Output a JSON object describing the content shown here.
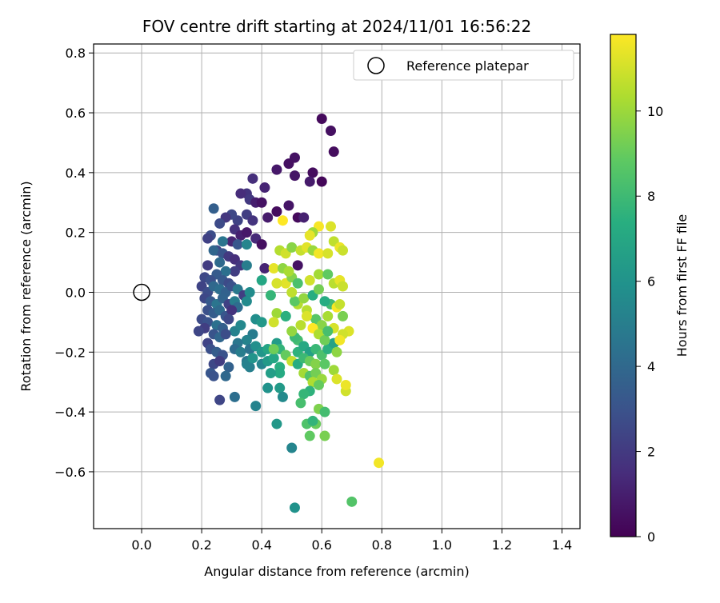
{
  "chart_data": {
    "type": "scatter",
    "title": "FOV centre drift starting at 2024/11/01 16:56:22",
    "xlabel": "Angular distance from reference (arcmin)",
    "ylabel": "Rotation from reference (arcmin)",
    "xlim": [
      -0.16,
      1.46
    ],
    "ylim": [
      -0.79,
      0.83
    ],
    "xticks": [
      0.0,
      0.2,
      0.4,
      0.6,
      0.8,
      1.0,
      1.2,
      1.4
    ],
    "xtick_labels": [
      "0.0",
      "0.2",
      "0.4",
      "0.6",
      "0.8",
      "1.0",
      "1.2",
      "1.4"
    ],
    "yticks": [
      -0.6,
      -0.4,
      -0.2,
      0.0,
      0.2,
      0.4,
      0.6,
      0.8
    ],
    "ytick_labels": [
      "−0.6",
      "−0.4",
      "−0.2",
      "0.0",
      "0.2",
      "0.4",
      "0.6",
      "0.8"
    ],
    "grid": true,
    "legend": {
      "position": "top-right",
      "entries": [
        "Reference platepar"
      ]
    },
    "reference_point": {
      "x": 0.0,
      "y": 0.0,
      "label": "Reference platepar"
    },
    "colorbar": {
      "label": "Hours from first FF file",
      "min": 0,
      "max": 11.8,
      "ticks": [
        0,
        2,
        4,
        6,
        8,
        10
      ],
      "tick_labels": [
        "0",
        "2",
        "4",
        "6",
        "8",
        "10"
      ],
      "colormap": "viridis"
    },
    "points": [
      [
        0.6,
        0.58,
        0.3
      ],
      [
        0.63,
        0.54,
        0.5
      ],
      [
        0.64,
        0.47,
        0.4
      ],
      [
        0.51,
        0.45,
        0.6
      ],
      [
        0.45,
        0.41,
        0.8
      ],
      [
        0.49,
        0.43,
        0.5
      ],
      [
        0.51,
        0.39,
        0.7
      ],
      [
        0.57,
        0.4,
        0.4
      ],
      [
        0.56,
        0.37,
        0.9
      ],
      [
        0.6,
        0.37,
        0.2
      ],
      [
        0.37,
        0.38,
        1.6
      ],
      [
        0.41,
        0.35,
        1.2
      ],
      [
        0.35,
        0.33,
        1.8
      ],
      [
        0.36,
        0.31,
        2.0
      ],
      [
        0.33,
        0.33,
        1.5
      ],
      [
        0.38,
        0.3,
        1.0
      ],
      [
        0.4,
        0.3,
        0.6
      ],
      [
        0.42,
        0.25,
        0.9
      ],
      [
        0.45,
        0.27,
        0.4
      ],
      [
        0.49,
        0.29,
        0.7
      ],
      [
        0.52,
        0.25,
        0.3
      ],
      [
        0.54,
        0.25,
        1.1
      ],
      [
        0.35,
        0.26,
        2.2
      ],
      [
        0.37,
        0.24,
        1.8
      ],
      [
        0.32,
        0.24,
        2.4
      ],
      [
        0.3,
        0.26,
        2.6
      ],
      [
        0.28,
        0.25,
        1.9
      ],
      [
        0.26,
        0.23,
        2.7
      ],
      [
        0.24,
        0.28,
        3.6
      ],
      [
        0.23,
        0.19,
        2.8
      ],
      [
        0.22,
        0.18,
        2.3
      ],
      [
        0.25,
        0.14,
        2.5
      ],
      [
        0.3,
        0.17,
        1.3
      ],
      [
        0.31,
        0.21,
        1.7
      ],
      [
        0.33,
        0.19,
        1.1
      ],
      [
        0.35,
        0.2,
        0.8
      ],
      [
        0.38,
        0.18,
        1.4
      ],
      [
        0.4,
        0.16,
        0.5
      ],
      [
        0.41,
        0.08,
        1.2
      ],
      [
        0.52,
        0.09,
        0.6
      ],
      [
        0.32,
        0.16,
        3.2
      ],
      [
        0.35,
        0.16,
        5.4
      ],
      [
        0.27,
        0.17,
        4.6
      ],
      [
        0.24,
        0.14,
        3.9
      ],
      [
        0.27,
        0.13,
        3.1
      ],
      [
        0.29,
        0.12,
        2.0
      ],
      [
        0.31,
        0.11,
        1.6
      ],
      [
        0.33,
        0.09,
        1.9
      ],
      [
        0.35,
        0.09,
        5.0
      ],
      [
        0.31,
        0.07,
        2.2
      ],
      [
        0.22,
        0.09,
        2.1
      ],
      [
        0.26,
        0.1,
        4.1
      ],
      [
        0.28,
        0.07,
        4.4
      ],
      [
        0.25,
        0.06,
        3.4
      ],
      [
        0.21,
        0.05,
        2.6
      ],
      [
        0.23,
        0.04,
        2.9
      ],
      [
        0.27,
        0.04,
        3.3
      ],
      [
        0.29,
        0.03,
        2.7
      ],
      [
        0.2,
        0.02,
        2.4
      ],
      [
        0.22,
        0.0,
        2.8
      ],
      [
        0.24,
        0.02,
        4.0
      ],
      [
        0.26,
        0.01,
        4.3
      ],
      [
        0.28,
        0.0,
        3.7
      ],
      [
        0.3,
        0.02,
        3.0
      ],
      [
        0.32,
        0.01,
        4.8
      ],
      [
        0.34,
        -0.01,
        2.2
      ],
      [
        0.36,
        0.0,
        5.7
      ],
      [
        0.21,
        -0.02,
        2.6
      ],
      [
        0.23,
        -0.03,
        3.3
      ],
      [
        0.25,
        -0.04,
        4.6
      ],
      [
        0.27,
        -0.02,
        3.8
      ],
      [
        0.29,
        -0.04,
        2.3
      ],
      [
        0.31,
        -0.03,
        5.0
      ],
      [
        0.32,
        -0.05,
        4.2
      ],
      [
        0.35,
        -0.03,
        5.6
      ],
      [
        0.22,
        -0.06,
        2.9
      ],
      [
        0.24,
        -0.07,
        3.5
      ],
      [
        0.26,
        -0.06,
        4.1
      ],
      [
        0.28,
        -0.08,
        3.2
      ],
      [
        0.3,
        -0.06,
        1.8
      ],
      [
        0.2,
        -0.09,
        2.7
      ],
      [
        0.22,
        -0.1,
        3.0
      ],
      [
        0.25,
        -0.11,
        4.4
      ],
      [
        0.27,
        -0.12,
        3.6
      ],
      [
        0.29,
        -0.09,
        2.6
      ],
      [
        0.31,
        -0.13,
        5.2
      ],
      [
        0.21,
        -0.12,
        2.2
      ],
      [
        0.19,
        -0.13,
        2.5
      ],
      [
        0.24,
        -0.14,
        3.1
      ],
      [
        0.26,
        -0.15,
        3.9
      ],
      [
        0.28,
        -0.14,
        2.8
      ],
      [
        0.33,
        -0.11,
        5.5
      ],
      [
        0.38,
        -0.09,
        5.8
      ],
      [
        0.4,
        -0.1,
        6.3
      ],
      [
        0.37,
        -0.14,
        4.9
      ],
      [
        0.35,
        -0.16,
        5.3
      ],
      [
        0.32,
        -0.17,
        4.7
      ],
      [
        0.22,
        -0.17,
        2.4
      ],
      [
        0.23,
        -0.19,
        2.9
      ],
      [
        0.25,
        -0.2,
        3.5
      ],
      [
        0.27,
        -0.21,
        3.0
      ],
      [
        0.31,
        -0.19,
        4.2
      ],
      [
        0.33,
        -0.2,
        5.0
      ],
      [
        0.36,
        -0.19,
        4.5
      ],
      [
        0.38,
        -0.18,
        5.9
      ],
      [
        0.4,
        -0.2,
        6.2
      ],
      [
        0.35,
        -0.23,
        4.6
      ],
      [
        0.36,
        -0.25,
        5.1
      ],
      [
        0.29,
        -0.25,
        3.7
      ],
      [
        0.24,
        -0.24,
        2.6
      ],
      [
        0.26,
        -0.23,
        2.1
      ],
      [
        0.23,
        -0.27,
        3.2
      ],
      [
        0.24,
        -0.28,
        3.0
      ],
      [
        0.28,
        -0.28,
        4.0
      ],
      [
        0.35,
        -0.24,
        5.2
      ],
      [
        0.37,
        -0.22,
        6.1
      ],
      [
        0.4,
        -0.24,
        5.4
      ],
      [
        0.42,
        -0.23,
        6.4
      ],
      [
        0.44,
        -0.22,
        7.0
      ],
      [
        0.46,
        -0.25,
        7.4
      ],
      [
        0.46,
        -0.27,
        7.2
      ],
      [
        0.43,
        -0.27,
        6.6
      ],
      [
        0.42,
        -0.32,
        6.0
      ],
      [
        0.46,
        -0.32,
        6.4
      ],
      [
        0.47,
        -0.35,
        5.6
      ],
      [
        0.38,
        -0.38,
        5.3
      ],
      [
        0.31,
        -0.35,
        4.3
      ],
      [
        0.26,
        -0.36,
        2.5
      ],
      [
        0.45,
        -0.44,
        6.3
      ],
      [
        0.5,
        -0.52,
        5.4
      ],
      [
        0.51,
        -0.72,
        6.0
      ],
      [
        0.7,
        -0.7,
        8.6
      ],
      [
        0.79,
        -0.57,
        11.6
      ],
      [
        0.42,
        -0.19,
        6.9
      ],
      [
        0.45,
        -0.17,
        6.5
      ],
      [
        0.46,
        -0.19,
        7.7
      ],
      [
        0.44,
        -0.19,
        9.2
      ],
      [
        0.48,
        -0.21,
        9.0
      ],
      [
        0.5,
        -0.23,
        10.8
      ],
      [
        0.52,
        -0.2,
        7.6
      ],
      [
        0.52,
        -0.16,
        8.2
      ],
      [
        0.54,
        -0.18,
        7.1
      ],
      [
        0.56,
        -0.2,
        6.7
      ],
      [
        0.58,
        -0.19,
        7.9
      ],
      [
        0.6,
        -0.21,
        8.4
      ],
      [
        0.62,
        -0.19,
        7.5
      ],
      [
        0.64,
        -0.17,
        6.8
      ],
      [
        0.65,
        -0.2,
        9.8
      ],
      [
        0.52,
        -0.24,
        7.3
      ],
      [
        0.54,
        -0.22,
        8.0
      ],
      [
        0.56,
        -0.23,
        9.1
      ],
      [
        0.58,
        -0.24,
        9.6
      ],
      [
        0.61,
        -0.24,
        8.8
      ],
      [
        0.54,
        -0.27,
        10.2
      ],
      [
        0.56,
        -0.28,
        8.6
      ],
      [
        0.58,
        -0.27,
        9.3
      ],
      [
        0.6,
        -0.29,
        10.0
      ],
      [
        0.57,
        -0.3,
        10.4
      ],
      [
        0.59,
        -0.31,
        9.0
      ],
      [
        0.56,
        -0.33,
        7.6
      ],
      [
        0.54,
        -0.34,
        7.8
      ],
      [
        0.53,
        -0.37,
        8.3
      ],
      [
        0.55,
        -0.44,
        8.5
      ],
      [
        0.56,
        -0.48,
        8.9
      ],
      [
        0.58,
        -0.44,
        9.1
      ],
      [
        0.59,
        -0.39,
        9.5
      ],
      [
        0.61,
        -0.4,
        8.2
      ],
      [
        0.61,
        -0.48,
        9.4
      ],
      [
        0.57,
        -0.43,
        7.7
      ],
      [
        0.64,
        -0.26,
        10.1
      ],
      [
        0.65,
        -0.29,
        11.2
      ],
      [
        0.68,
        -0.33,
        11.0
      ],
      [
        0.68,
        -0.31,
        11.5
      ],
      [
        0.55,
        -0.06,
        10.6
      ],
      [
        0.58,
        -0.09,
        8.7
      ],
      [
        0.6,
        -0.11,
        9.7
      ],
      [
        0.62,
        -0.08,
        10.3
      ],
      [
        0.64,
        -0.12,
        11.1
      ],
      [
        0.63,
        -0.04,
        8.1
      ],
      [
        0.61,
        -0.03,
        7.3
      ],
      [
        0.52,
        -0.04,
        10.5
      ],
      [
        0.51,
        -0.03,
        8.8
      ],
      [
        0.54,
        -0.02,
        9.9
      ],
      [
        0.57,
        -0.01,
        7.4
      ],
      [
        0.59,
        0.01,
        9.3
      ],
      [
        0.5,
        0.0,
        10.7
      ],
      [
        0.48,
        0.03,
        11.3
      ],
      [
        0.5,
        0.05,
        9.6
      ],
      [
        0.52,
        0.03,
        8.4
      ],
      [
        0.56,
        0.04,
        11.0
      ],
      [
        0.59,
        0.06,
        10.2
      ],
      [
        0.62,
        0.06,
        8.9
      ],
      [
        0.64,
        0.03,
        10.6
      ],
      [
        0.66,
        0.04,
        11.4
      ],
      [
        0.67,
        0.02,
        10.9
      ],
      [
        0.65,
        -0.05,
        11.7
      ],
      [
        0.66,
        -0.04,
        10.8
      ],
      [
        0.67,
        -0.08,
        9.4
      ],
      [
        0.69,
        -0.13,
        11.2
      ],
      [
        0.67,
        -0.14,
        11.0
      ],
      [
        0.66,
        -0.16,
        11.6
      ],
      [
        0.45,
        -0.07,
        10.1
      ],
      [
        0.44,
        -0.1,
        11.0
      ],
      [
        0.48,
        -0.08,
        6.8
      ],
      [
        0.51,
        -0.15,
        8.0
      ],
      [
        0.5,
        -0.13,
        9.9
      ],
      [
        0.53,
        -0.11,
        10.6
      ],
      [
        0.55,
        -0.08,
        11.2
      ],
      [
        0.57,
        -0.12,
        11.8
      ],
      [
        0.59,
        -0.14,
        10.4
      ],
      [
        0.61,
        -0.16,
        9.2
      ],
      [
        0.62,
        -0.13,
        8.3
      ],
      [
        0.45,
        0.03,
        11.1
      ],
      [
        0.44,
        0.08,
        11.4
      ],
      [
        0.47,
        0.08,
        9.8
      ],
      [
        0.49,
        0.07,
        10.3
      ],
      [
        0.46,
        0.14,
        10.5
      ],
      [
        0.48,
        0.13,
        11.0
      ],
      [
        0.5,
        0.15,
        9.7
      ],
      [
        0.53,
        0.14,
        10.8
      ],
      [
        0.55,
        0.15,
        11.3
      ],
      [
        0.57,
        0.14,
        10.0
      ],
      [
        0.59,
        0.13,
        11.6
      ],
      [
        0.62,
        0.13,
        11.1
      ],
      [
        0.64,
        0.17,
        10.7
      ],
      [
        0.66,
        0.15,
        11.5
      ],
      [
        0.67,
        0.14,
        10.9
      ],
      [
        0.63,
        0.22,
        11.2
      ],
      [
        0.59,
        0.22,
        11.7
      ],
      [
        0.57,
        0.2,
        10.1
      ],
      [
        0.56,
        0.19,
        11.4
      ],
      [
        0.47,
        0.24,
        11.8
      ],
      [
        0.4,
        0.04,
        7.0
      ],
      [
        0.43,
        -0.01,
        7.8
      ],
      [
        0.48,
        -0.08,
        7.5
      ]
    ]
  }
}
